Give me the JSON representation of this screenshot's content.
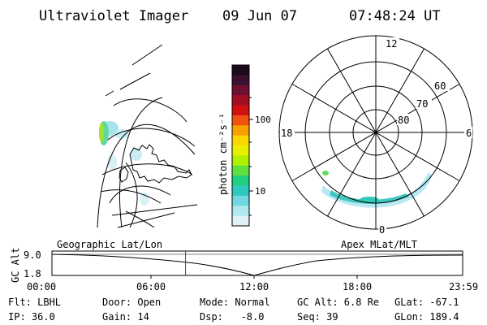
{
  "header": {
    "instrument": "Ultraviolet Imager",
    "date": "09 Jun 07",
    "time": "07:48:24 UT"
  },
  "colorbar": {
    "unit_label": "photon cm⁻²s⁻¹",
    "tick_labels": [
      "100",
      "10"
    ],
    "colors": [
      "#1a0a1a",
      "#3a1030",
      "#701030",
      "#a01020",
      "#d01010",
      "#f05010",
      "#f8a000",
      "#f8d800",
      "#e8f000",
      "#b0f000",
      "#60e040",
      "#20d080",
      "#30c8c0",
      "#70d8e0",
      "#b0e8f0",
      "#e0f0f8"
    ]
  },
  "polar_plot": {
    "mlt_labels": {
      "top": "12",
      "left": "18",
      "right": "6",
      "bottom": "0"
    },
    "lat_labels": [
      "60",
      "70",
      "80"
    ]
  },
  "timeline": {
    "y_axis_label": "GC Alt",
    "y_ticks": [
      "9.0",
      "1.8"
    ],
    "left_label": "Geographic Lat/Lon",
    "right_label": "Apex MLat/MLT",
    "x_ticks": [
      "00:00",
      "06:00",
      "12:00",
      "18:00",
      "23:59"
    ],
    "current_fraction": 0.3253,
    "marker_color": "#e00000"
  },
  "info": {
    "flt": "Flt: LBHL",
    "ip": "IP: 36.0",
    "door": "Door: Open",
    "gain": "Gain: 14",
    "mode": "Mode: Normal",
    "dsp": "Dsp:   -8.0",
    "gc_alt": "GC Alt: 6.8 Re",
    "seq": "Seq: 39",
    "glat": "GLat: -67.1",
    "glon": "GLon: 189.4"
  }
}
